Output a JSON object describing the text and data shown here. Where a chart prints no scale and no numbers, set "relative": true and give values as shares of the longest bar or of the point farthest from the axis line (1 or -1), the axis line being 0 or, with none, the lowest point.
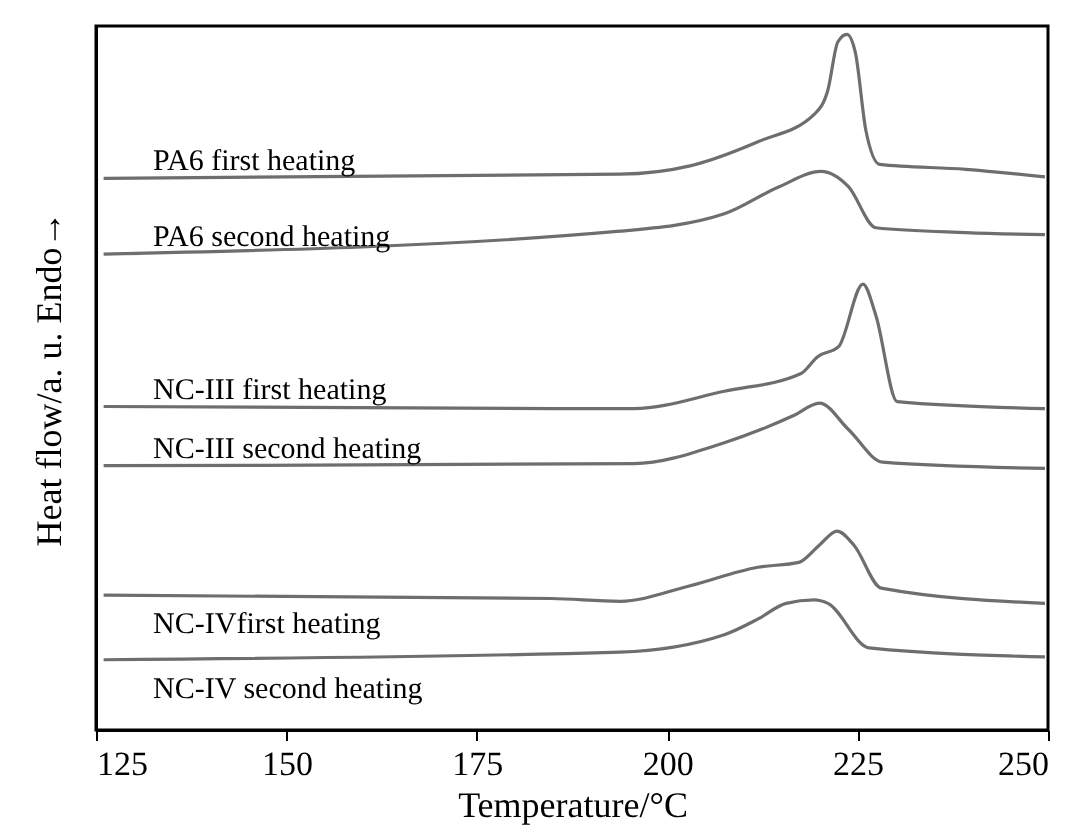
{
  "chart_data": {
    "type": "line",
    "relative": true,
    "xlabel": "Temperature/°C",
    "ylabel": "Heat flow/a. u.   Endo→",
    "xlim": [
      125,
      250
    ],
    "xticks": [
      125,
      150,
      175,
      200,
      225,
      250
    ],
    "grid": false,
    "marker": "none",
    "line_style": "solid",
    "series": [
      {
        "name": "PA6 first heating",
        "color": "#6e6e6e",
        "x": [
          126.0,
          193.8,
          203.0,
          212.0,
          219.3,
          221.1,
          222.4,
          223.6,
          224.7,
          226.1,
          227.9,
          239.2,
          249.6
        ],
        "values": [
          0.793,
          0.799,
          0.811,
          0.846,
          0.885,
          0.92,
          0.989,
          1.0,
          0.974,
          0.861,
          0.813,
          0.806,
          0.795
        ]
      },
      {
        "name": "PA6 second heating",
        "color": "#6e6e6e",
        "x": [
          126.0,
          193.8,
          207.5,
          214.7,
          220.2,
          223.8,
          227.4,
          239.2,
          249.6
        ],
        "values": [
          0.684,
          0.717,
          0.742,
          0.781,
          0.803,
          0.781,
          0.722,
          0.715,
          0.712
        ]
      },
      {
        "name": "NC-III first heating",
        "color": "#6e6e6e",
        "x": [
          126.0,
          195.6,
          207.5,
          217.5,
          219.8,
          222.5,
          225.7,
          227.4,
          230.2,
          249.6
        ],
        "values": [
          0.465,
          0.462,
          0.487,
          0.512,
          0.537,
          0.551,
          0.641,
          0.596,
          0.472,
          0.462
        ]
      },
      {
        "name": "NC-III second heating",
        "color": "#6e6e6e",
        "x": [
          126.0,
          195.6,
          207.5,
          216.6,
          220.0,
          223.8,
          228.3,
          249.6
        ],
        "values": [
          0.38,
          0.383,
          0.413,
          0.452,
          0.47,
          0.432,
          0.385,
          0.376
        ]
      },
      {
        "name": "NC-IVfirst heating",
        "color": "#6e6e6e",
        "x": [
          126.0,
          184.8,
          193.8,
          202.9,
          211.9,
          217.3,
          220.0,
          222.3,
          224.5,
          228.1,
          249.6
        ],
        "values": [
          0.194,
          0.189,
          0.185,
          0.207,
          0.234,
          0.241,
          0.266,
          0.286,
          0.266,
          0.204,
          0.182
        ]
      },
      {
        "name": "NC-IV second heating",
        "color": "#6e6e6e",
        "x": [
          126.0,
          193.8,
          207.5,
          212.0,
          215.6,
          219.3,
          221.1,
          226.5,
          249.6
        ],
        "values": [
          0.101,
          0.112,
          0.137,
          0.16,
          0.182,
          0.187,
          0.182,
          0.118,
          0.105
        ]
      }
    ]
  }
}
